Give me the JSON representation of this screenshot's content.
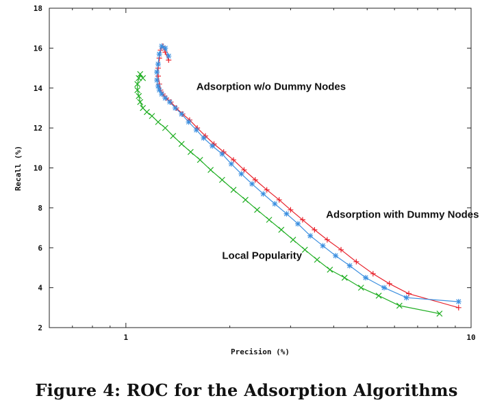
{
  "caption": "Figure 4: ROC for the Adsorption Algorithms",
  "chart_data": {
    "type": "line",
    "title": "",
    "xlabel": "Precision (%)",
    "ylabel": "Recall (%)",
    "x_scale": "log",
    "xlim": [
      0.6,
      10
    ],
    "ylim": [
      2,
      18
    ],
    "x_ticks": [
      1,
      10
    ],
    "y_ticks": [
      2,
      4,
      6,
      8,
      10,
      12,
      14,
      16,
      18
    ],
    "grid": false,
    "legend": "none",
    "annotations": [
      {
        "text": "Adsorption w/o Dummy Nodes",
        "x": 1.6,
        "y": 13.9
      },
      {
        "text": "Adsorption with Dummy Nodes",
        "x": 3.8,
        "y": 7.5
      },
      {
        "text": "Local Popularity",
        "x": 1.9,
        "y": 5.45
      }
    ],
    "series": [
      {
        "color": "#e8202a",
        "marker": "plus",
        "x": [
          1.33,
          1.3,
          1.28,
          1.26,
          1.25,
          1.24,
          1.24,
          1.25,
          1.26,
          1.28,
          1.31,
          1.35,
          1.4,
          1.46,
          1.53,
          1.61,
          1.7,
          1.8,
          1.92,
          2.05,
          2.2,
          2.37,
          2.56,
          2.78,
          3.0,
          3.25,
          3.52,
          3.83,
          4.2,
          4.65,
          5.2,
          5.8,
          6.6,
          9.2
        ],
        "y": [
          15.4,
          15.8,
          16.1,
          15.9,
          15.5,
          15.0,
          14.6,
          14.2,
          13.9,
          13.7,
          13.5,
          13.3,
          13.0,
          12.7,
          12.4,
          12.0,
          11.6,
          11.2,
          10.8,
          10.4,
          9.9,
          9.4,
          8.9,
          8.4,
          7.9,
          7.4,
          6.9,
          6.4,
          5.9,
          5.3,
          4.7,
          4.2,
          3.7,
          3.0
        ]
      },
      {
        "color": "#3b8fe0",
        "marker": "star",
        "x": [
          1.33,
          1.3,
          1.27,
          1.25,
          1.24,
          1.23,
          1.23,
          1.24,
          1.25,
          1.27,
          1.3,
          1.34,
          1.39,
          1.45,
          1.52,
          1.6,
          1.68,
          1.78,
          1.9,
          2.02,
          2.16,
          2.32,
          2.5,
          2.7,
          2.92,
          3.15,
          3.42,
          3.72,
          4.05,
          4.45,
          4.95,
          5.6,
          6.5,
          9.2
        ],
        "y": [
          15.6,
          16.0,
          16.1,
          15.7,
          15.2,
          14.8,
          14.4,
          14.1,
          13.9,
          13.7,
          13.5,
          13.3,
          13.0,
          12.7,
          12.3,
          11.9,
          11.5,
          11.1,
          10.7,
          10.2,
          9.7,
          9.2,
          8.7,
          8.2,
          7.7,
          7.2,
          6.6,
          6.1,
          5.6,
          5.1,
          4.5,
          4.0,
          3.5,
          3.3
        ]
      },
      {
        "color": "#1fae22",
        "marker": "x",
        "x": [
          1.12,
          1.1,
          1.09,
          1.08,
          1.08,
          1.09,
          1.1,
          1.12,
          1.15,
          1.19,
          1.24,
          1.3,
          1.37,
          1.45,
          1.54,
          1.64,
          1.76,
          1.9,
          2.05,
          2.22,
          2.4,
          2.6,
          2.82,
          3.05,
          3.3,
          3.58,
          3.9,
          4.3,
          4.8,
          5.4,
          6.2,
          8.1
        ],
        "y": [
          14.5,
          14.7,
          14.5,
          14.2,
          13.9,
          13.6,
          13.3,
          13.0,
          12.8,
          12.6,
          12.3,
          12.0,
          11.6,
          11.2,
          10.8,
          10.4,
          9.9,
          9.4,
          8.9,
          8.4,
          7.9,
          7.4,
          6.9,
          6.4,
          5.9,
          5.4,
          4.9,
          4.5,
          4.0,
          3.6,
          3.1,
          2.7
        ]
      }
    ]
  }
}
